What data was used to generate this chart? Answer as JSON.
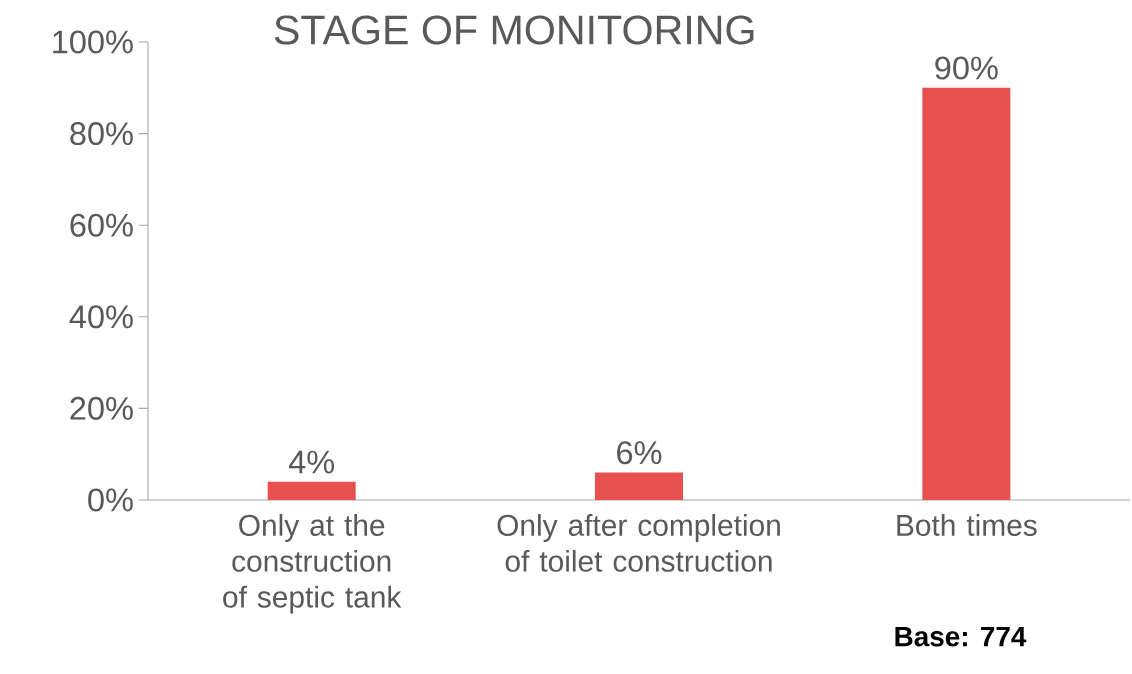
{
  "chart_data": {
    "type": "bar",
    "title": "STAGE OF MONITORING",
    "categories": [
      "Only at the construction of septic tank",
      "Only after completion of toilet construction",
      "Both times"
    ],
    "values": [
      4,
      6,
      90
    ],
    "color": "#e84f4f",
    "value_labels": [
      "4%",
      "6%",
      "90%"
    ],
    "ylim": [
      0,
      100
    ],
    "yticks": [
      {
        "value": 0,
        "label": "0%"
      },
      {
        "value": 20,
        "label": "20%"
      },
      {
        "value": 40,
        "label": "40%"
      },
      {
        "value": 60,
        "label": "60%"
      },
      {
        "value": 80,
        "label": "80%"
      },
      {
        "value": 100,
        "label": "100%"
      }
    ],
    "annotations": [
      "Base: 774"
    ]
  }
}
